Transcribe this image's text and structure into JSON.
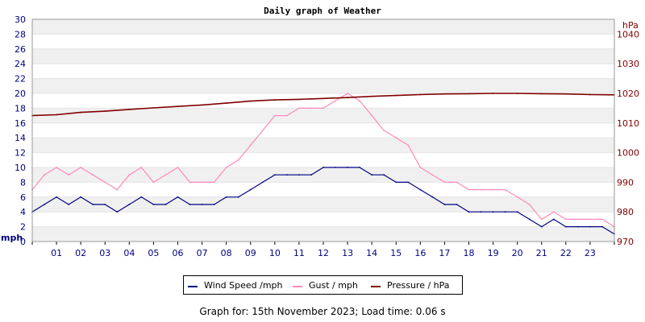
{
  "chart_data": {
    "type": "line",
    "title": "Daily graph of Weather",
    "left_unit": "mph",
    "right_unit": "hPa",
    "left_ylim": [
      0,
      30
    ],
    "left_ticks": [
      "0",
      "2",
      "4",
      "6",
      "8",
      "10",
      "12",
      "14",
      "16",
      "18",
      "20",
      "22",
      "24",
      "26",
      "28",
      "30"
    ],
    "right_ylim": [
      970,
      1045
    ],
    "right_ticks": [
      "970",
      "980",
      "990",
      "1000",
      "1010",
      "1020",
      "1030",
      "1040"
    ],
    "x_range": [
      0,
      24
    ],
    "x_tick_labels": [
      "01",
      "02",
      "03",
      "04",
      "05",
      "06",
      "07",
      "08",
      "09",
      "10",
      "11",
      "12",
      "13",
      "14",
      "15",
      "16",
      "17",
      "18",
      "19",
      "20",
      "21",
      "22",
      "23"
    ],
    "grid": "horizontal bands",
    "series": [
      {
        "name": "Wind Speed /mph",
        "axis": "left",
        "color": "#000080",
        "x": [
          0,
          0.5,
          1,
          1.5,
          2,
          2.5,
          3,
          3.5,
          4,
          4.5,
          5,
          5.5,
          6,
          6.5,
          7,
          7.5,
          8,
          8.5,
          9,
          9.5,
          10,
          10.5,
          11,
          11.5,
          12,
          12.5,
          13,
          13.5,
          14,
          14.5,
          15,
          15.5,
          16,
          16.5,
          17,
          17.5,
          18,
          18.5,
          19,
          19.5,
          20,
          20.5,
          21,
          21.5,
          22,
          22.5,
          23,
          23.5,
          24
        ],
        "values": [
          4,
          5,
          6,
          5,
          6,
          5,
          5,
          4,
          5,
          6,
          5,
          5,
          6,
          5,
          5,
          5,
          6,
          6,
          7,
          8,
          9,
          9,
          9,
          9,
          10,
          10,
          10,
          10,
          9,
          9,
          8,
          8,
          7,
          6,
          5,
          5,
          4,
          4,
          4,
          4,
          4,
          3,
          2,
          3,
          2,
          2,
          2,
          2,
          1
        ]
      },
      {
        "name": "Gust / mph",
        "axis": "left",
        "color": "#ff88bb",
        "x": [
          0,
          0.5,
          1,
          1.5,
          2,
          2.5,
          3,
          3.5,
          4,
          4.5,
          5,
          5.5,
          6,
          6.5,
          7,
          7.5,
          8,
          8.5,
          9,
          9.5,
          10,
          10.5,
          11,
          11.5,
          12,
          12.5,
          13,
          13.5,
          14,
          14.5,
          15,
          15.5,
          16,
          16.5,
          17,
          17.5,
          18,
          18.5,
          19,
          19.5,
          20,
          20.5,
          21,
          21.5,
          22,
          22.5,
          23,
          23.5,
          24
        ],
        "values": [
          7,
          9,
          10,
          9,
          10,
          9,
          8,
          7,
          9,
          10,
          8,
          9,
          10,
          8,
          8,
          8,
          10,
          11,
          13,
          15,
          17,
          17,
          18,
          18,
          18,
          19,
          20,
          19,
          17,
          15,
          14,
          13,
          10,
          9,
          8,
          8,
          7,
          7,
          7,
          7,
          6,
          5,
          3,
          4,
          3,
          3,
          3,
          3,
          2
        ]
      },
      {
        "name": "Pressure / hPa",
        "axis": "right",
        "color": "#800000",
        "x": [
          0,
          1,
          2,
          3,
          4,
          5,
          6,
          7,
          8,
          9,
          10,
          11,
          12,
          13,
          14,
          15,
          16,
          17,
          18,
          19,
          20,
          21,
          22,
          23,
          24
        ],
        "values": [
          1012.5,
          1012.8,
          1013.6,
          1014,
          1014.6,
          1015.1,
          1015.6,
          1016.1,
          1016.7,
          1017.4,
          1017.8,
          1018,
          1018.3,
          1018.6,
          1019,
          1019.3,
          1019.6,
          1019.8,
          1019.9,
          1020,
          1020,
          1019.9,
          1019.8,
          1019.6,
          1019.5
        ]
      }
    ]
  },
  "legend": {
    "wind": "Wind Speed /mph",
    "gust": "Gust / mph",
    "pressure": "Pressure / hPa"
  },
  "footer": "Graph for: 15th November 2023; Load time: 0.06 s"
}
